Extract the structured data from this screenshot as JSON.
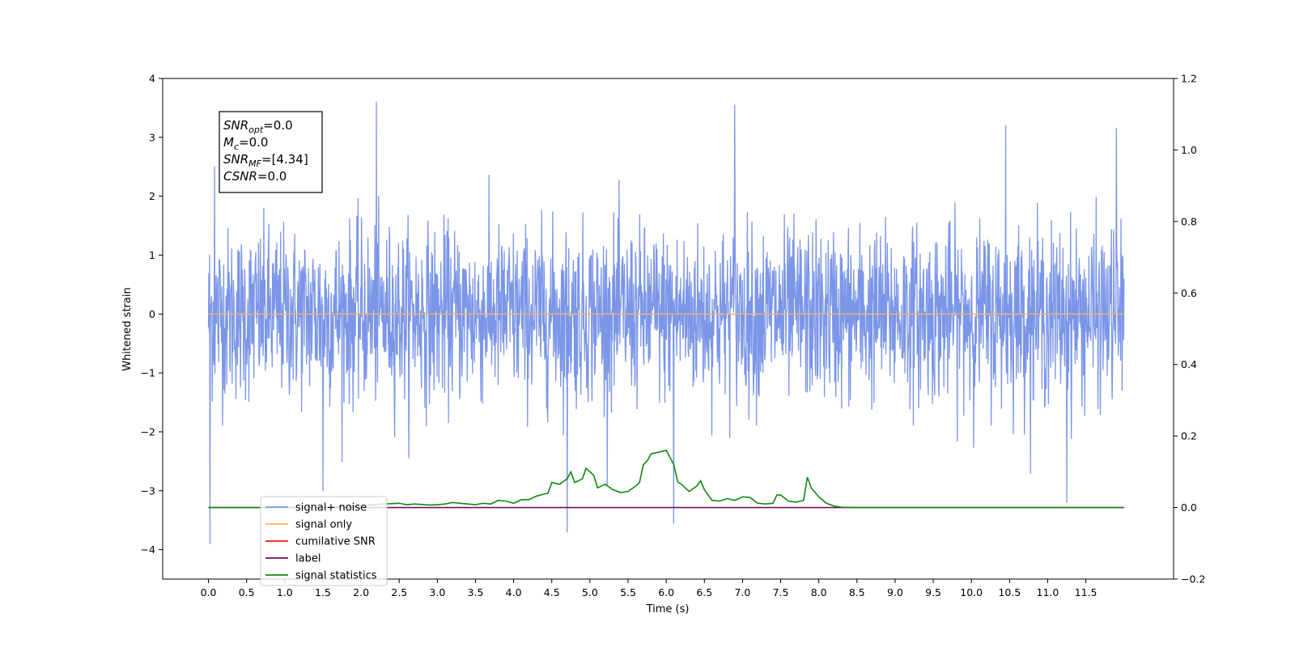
{
  "chart_data": {
    "type": "line",
    "xlabel": "Time (s)",
    "ylabel": "Whitened strain",
    "xlim": [
      -0.6,
      12.65
    ],
    "ylim": [
      -4.5,
      4.0
    ],
    "y2lim": [
      -0.2,
      1.2
    ],
    "x_ticks": [
      0.0,
      0.5,
      1.0,
      1.5,
      2.0,
      2.5,
      3.0,
      3.5,
      4.0,
      4.5,
      5.0,
      5.5,
      6.0,
      6.5,
      7.0,
      7.5,
      8.0,
      8.5,
      9.0,
      9.5,
      10.0,
      10.5,
      11.0,
      11.5
    ],
    "x_tick_labels": [
      "0.0",
      "0.5",
      "1.0",
      "1.5",
      "2.0",
      "2.5",
      "3.0",
      "3.5",
      "4.0",
      "4.5",
      "5.0",
      "5.5",
      "6.0",
      "6.5",
      "7.0",
      "7.5",
      "8.0",
      "8.5",
      "9.0",
      "9.5",
      "10.0",
      "10.5",
      "11.0",
      "11.5"
    ],
    "y_ticks": [
      -4,
      -3,
      -2,
      -1,
      0,
      1,
      2,
      3,
      4
    ],
    "y_tick_labels": [
      "−4",
      "−3",
      "−2",
      "−1",
      "0",
      "1",
      "2",
      "3",
      "4"
    ],
    "y2_ticks": [
      -0.2,
      0.0,
      0.2,
      0.4,
      0.6,
      0.8,
      1.0,
      1.2
    ],
    "y2_tick_labels": [
      "−0.2",
      "0.0",
      "0.2",
      "0.4",
      "0.6",
      "0.8",
      "1.0",
      "1.2"
    ],
    "grid": false,
    "legend_position": "lower-left",
    "annotation": {
      "lines": [
        {
          "main": "SNR",
          "sub": "opt",
          "rest": "=0.0"
        },
        {
          "main": "M",
          "sub": "c",
          "rest": "=0.0"
        },
        {
          "main": "SNR",
          "sub": "MF",
          "rest": "=[4.34]"
        },
        {
          "main": "CSNR",
          "sub": "",
          "rest": "=0.0"
        }
      ]
    },
    "series": [
      {
        "name": "signal+ noise",
        "axis": "left",
        "color": "#7b96e8",
        "kind": "noise",
        "x_range": [
          0.0,
          12.0
        ],
        "envelope_sigma": 0.72,
        "spikes": [
          [
            0.02,
            -3.9
          ],
          [
            0.08,
            2.5
          ],
          [
            1.5,
            -3.0
          ],
          [
            2.2,
            3.6
          ],
          [
            4.7,
            -3.7
          ],
          [
            6.1,
            -3.55
          ],
          [
            6.9,
            3.55
          ],
          [
            10.45,
            3.2
          ],
          [
            11.25,
            -3.2
          ],
          [
            11.9,
            3.15
          ]
        ]
      },
      {
        "name": "signal only",
        "axis": "left",
        "color": "#f5b461",
        "kind": "line",
        "x": [
          0.0,
          12.0
        ],
        "y": [
          0.0,
          0.0
        ]
      },
      {
        "name": "cumilative SNR",
        "axis": "right",
        "color": "#e41a1c",
        "kind": "line",
        "x": [
          0.0,
          12.0
        ],
        "y": [
          0.0,
          0.0
        ]
      },
      {
        "name": "label",
        "axis": "right",
        "color": "#6a0a6a",
        "kind": "line",
        "x": [
          0.0,
          12.0
        ],
        "y": [
          0.0,
          0.0
        ]
      },
      {
        "name": "signal statistics",
        "axis": "right",
        "color": "#118811",
        "kind": "line",
        "x": [
          0.0,
          1.0,
          1.5,
          2.0,
          2.3,
          2.5,
          2.6,
          2.7,
          2.9,
          3.0,
          3.1,
          3.2,
          3.3,
          3.4,
          3.5,
          3.6,
          3.7,
          3.8,
          3.9,
          4.0,
          4.1,
          4.2,
          4.3,
          4.4,
          4.45,
          4.5,
          4.6,
          4.7,
          4.75,
          4.8,
          4.9,
          4.95,
          5.0,
          5.05,
          5.1,
          5.2,
          5.3,
          5.4,
          5.5,
          5.6,
          5.65,
          5.7,
          5.75,
          5.8,
          5.9,
          6.0,
          6.1,
          6.15,
          6.2,
          6.3,
          6.4,
          6.45,
          6.5,
          6.6,
          6.7,
          6.8,
          6.9,
          7.0,
          7.1,
          7.2,
          7.3,
          7.4,
          7.45,
          7.5,
          7.6,
          7.7,
          7.8,
          7.85,
          7.9,
          8.0,
          8.1,
          8.2,
          8.3,
          8.5,
          9.0,
          10.0,
          12.0
        ],
        "y": [
          0.0,
          0.0,
          0.0,
          0.005,
          0.01,
          0.012,
          0.008,
          0.01,
          0.007,
          0.008,
          0.01,
          0.014,
          0.012,
          0.01,
          0.008,
          0.012,
          0.01,
          0.02,
          0.018,
          0.012,
          0.022,
          0.022,
          0.032,
          0.038,
          0.04,
          0.07,
          0.065,
          0.08,
          0.1,
          0.07,
          0.08,
          0.11,
          0.1,
          0.09,
          0.055,
          0.065,
          0.05,
          0.042,
          0.045,
          0.06,
          0.07,
          0.12,
          0.13,
          0.15,
          0.155,
          0.16,
          0.12,
          0.072,
          0.065,
          0.045,
          0.06,
          0.075,
          0.05,
          0.02,
          0.018,
          0.025,
          0.02,
          0.03,
          0.028,
          0.012,
          0.01,
          0.012,
          0.035,
          0.035,
          0.018,
          0.015,
          0.02,
          0.085,
          0.055,
          0.03,
          0.012,
          0.004,
          0.001,
          0.0,
          0.0,
          0.0,
          0.0
        ]
      }
    ]
  }
}
